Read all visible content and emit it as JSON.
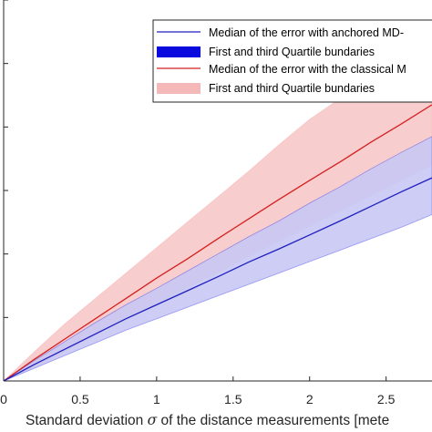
{
  "chart_data": {
    "type": "line",
    "xlabel_prefix": "Standard deviation ",
    "xlabel_symbol": "σ",
    "xlabel_suffix": " of the distance measurements [mete",
    "ylabel": "",
    "xlim": [
      0,
      2.8
    ],
    "ylim": [
      0,
      6
    ],
    "xticks": [
      "0",
      "0.5",
      "1",
      "1.5",
      "2",
      "2.5"
    ],
    "xtick_values": [
      0,
      0.5,
      1,
      1.5,
      2,
      2.5
    ],
    "grid": false,
    "legend_position": "top-right",
    "x": [
      0,
      0.2,
      0.4,
      0.6,
      0.8,
      1.0,
      1.2,
      1.4,
      1.6,
      1.8,
      2.0,
      2.2,
      2.4,
      2.6,
      2.8
    ],
    "series": [
      {
        "name": "Median of the error with anchored MD-",
        "color": "#1f1fbf",
        "median": [
          0.0,
          0.26,
          0.5,
          0.74,
          0.98,
          1.2,
          1.42,
          1.64,
          1.87,
          2.08,
          2.3,
          2.52,
          2.75,
          2.98,
          3.2
        ],
        "band_name": "First and third Quartile bundaries",
        "band_color": "#0a0adf",
        "band_fill": "#c8c8f4",
        "q1": [
          0.0,
          0.2,
          0.4,
          0.6,
          0.8,
          0.98,
          1.16,
          1.34,
          1.52,
          1.7,
          1.88,
          2.06,
          2.24,
          2.42,
          2.62
        ],
        "q3": [
          0.0,
          0.32,
          0.62,
          0.92,
          1.2,
          1.46,
          1.73,
          2.0,
          2.27,
          2.52,
          2.8,
          3.06,
          3.34,
          3.6,
          3.85
        ]
      },
      {
        "name": "Median of the error with the classical M",
        "color": "#d42020",
        "median": [
          0.0,
          0.34,
          0.66,
          0.98,
          1.3,
          1.62,
          1.92,
          2.24,
          2.55,
          2.86,
          3.16,
          3.45,
          3.76,
          4.05,
          4.35
        ],
        "band_name": "First and third Quartile bundaries",
        "band_color": "#f5b8b8",
        "band_fill": "#f8cdcd",
        "q1": [
          0.0,
          0.22,
          0.46,
          0.72,
          0.98,
          1.22,
          1.46,
          1.71,
          1.96,
          2.2,
          2.44,
          2.68,
          2.92,
          3.16,
          3.4
        ],
        "q3": [
          0.0,
          0.46,
          0.9,
          1.3,
          1.7,
          2.1,
          2.5,
          2.9,
          3.3,
          3.72,
          4.12,
          4.45,
          4.85,
          5.2,
          5.5
        ]
      }
    ]
  }
}
